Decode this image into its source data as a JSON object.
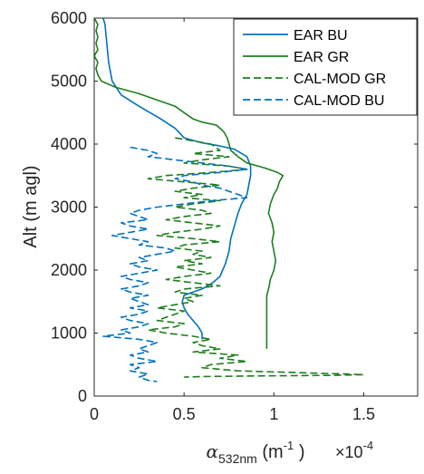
{
  "chart_data": {
    "type": "line",
    "title": "",
    "xlabel": "α",
    "xlabel_sub": "532nm",
    "xlabel_unit": " (m",
    "xlabel_unit_sup": "-1",
    "xlabel_unit_close": " )",
    "ylabel": "Alt (m agl)",
    "x_multiplier_label": "×10",
    "x_multiplier_exp": "-4",
    "xlim": [
      0,
      1.8
    ],
    "ylim": [
      0,
      6000
    ],
    "xticks": [
      0,
      0.5,
      1,
      1.5
    ],
    "xtick_labels": [
      "0",
      "0.5",
      "1",
      "1.5"
    ],
    "yticks": [
      0,
      1000,
      2000,
      3000,
      4000,
      5000,
      6000
    ],
    "ytick_labels": [
      "0",
      "1000",
      "2000",
      "3000",
      "4000",
      "5000",
      "6000"
    ],
    "grid": false,
    "legend_position": "top-right",
    "series": [
      {
        "name": "EAR BU",
        "color": "#0072BD",
        "dash": "solid",
        "points": [
          [
            0.05,
            6000
          ],
          [
            0.06,
            5900
          ],
          [
            0.07,
            5600
          ],
          [
            0.08,
            5300
          ],
          [
            0.1,
            5000
          ],
          [
            0.15,
            4780
          ],
          [
            0.25,
            4600
          ],
          [
            0.37,
            4400
          ],
          [
            0.45,
            4250
          ],
          [
            0.5,
            4100
          ],
          [
            0.6,
            4020
          ],
          [
            0.7,
            3970
          ],
          [
            0.78,
            3920
          ],
          [
            0.85,
            3800
          ],
          [
            0.87,
            3650
          ],
          [
            0.87,
            3500
          ],
          [
            0.86,
            3350
          ],
          [
            0.85,
            3200
          ],
          [
            0.82,
            3050
          ],
          [
            0.8,
            2900
          ],
          [
            0.78,
            2700
          ],
          [
            0.76,
            2500
          ],
          [
            0.75,
            2300
          ],
          [
            0.73,
            2100
          ],
          [
            0.7,
            1900
          ],
          [
            0.66,
            1800
          ],
          [
            0.6,
            1700
          ],
          [
            0.55,
            1650
          ],
          [
            0.5,
            1600
          ],
          [
            0.49,
            1500
          ],
          [
            0.5,
            1400
          ],
          [
            0.52,
            1300
          ],
          [
            0.55,
            1200
          ],
          [
            0.58,
            1100
          ],
          [
            0.6,
            1000
          ],
          [
            0.6,
            900
          ]
        ]
      },
      {
        "name": "EAR GR",
        "color": "#1D7E1D",
        "dash": "solid",
        "points": [
          [
            0.0,
            6000
          ],
          [
            0.02,
            5900
          ],
          [
            0.01,
            5800
          ],
          [
            0.02,
            5700
          ],
          [
            0.01,
            5600
          ],
          [
            0.02,
            5500
          ],
          [
            0.0,
            5400
          ],
          [
            0.02,
            5300
          ],
          [
            0.01,
            5200
          ],
          [
            0.02,
            5100
          ],
          [
            0.04,
            5000
          ],
          [
            0.12,
            4900
          ],
          [
            0.25,
            4800
          ],
          [
            0.35,
            4700
          ],
          [
            0.45,
            4600
          ],
          [
            0.5,
            4500
          ],
          [
            0.55,
            4400
          ],
          [
            0.6,
            4350
          ],
          [
            0.68,
            4300
          ],
          [
            0.72,
            4200
          ],
          [
            0.74,
            4100
          ],
          [
            0.75,
            4000
          ],
          [
            0.76,
            3900
          ],
          [
            0.8,
            3800
          ],
          [
            0.85,
            3700
          ],
          [
            0.95,
            3620
          ],
          [
            1.02,
            3550
          ],
          [
            1.05,
            3500
          ],
          [
            1.03,
            3400
          ],
          [
            1.02,
            3300
          ],
          [
            1.0,
            3200
          ],
          [
            0.98,
            3050
          ],
          [
            0.97,
            2900
          ],
          [
            0.99,
            2750
          ],
          [
            1.0,
            2600
          ],
          [
            0.99,
            2450
          ],
          [
            1.0,
            2300
          ],
          [
            1.01,
            2150
          ],
          [
            1.0,
            2000
          ],
          [
            0.98,
            1850
          ],
          [
            0.97,
            1700
          ],
          [
            0.96,
            1600
          ],
          [
            0.96,
            1500
          ],
          [
            0.96,
            1300
          ],
          [
            0.96,
            1100
          ],
          [
            0.96,
            950
          ],
          [
            0.96,
            750
          ]
        ]
      },
      {
        "name": "CAL-MOD GR",
        "color": "#1D7E1D",
        "dash": "dashed",
        "points": [
          [
            0.45,
            4100
          ],
          [
            0.55,
            4050
          ],
          [
            0.65,
            4000
          ],
          [
            0.7,
            3900
          ],
          [
            0.55,
            3850
          ],
          [
            0.75,
            3800
          ],
          [
            0.6,
            3750
          ],
          [
            0.5,
            3700
          ],
          [
            0.75,
            3650
          ],
          [
            0.85,
            3600
          ],
          [
            0.65,
            3550
          ],
          [
            0.4,
            3500
          ],
          [
            0.3,
            3450
          ],
          [
            0.5,
            3400
          ],
          [
            0.7,
            3350
          ],
          [
            0.55,
            3300
          ],
          [
            0.45,
            3250
          ],
          [
            0.6,
            3200
          ],
          [
            0.5,
            3150
          ],
          [
            0.7,
            3100
          ],
          [
            0.55,
            3050
          ],
          [
            0.45,
            3000
          ],
          [
            0.6,
            2950
          ],
          [
            0.65,
            2900
          ],
          [
            0.5,
            2850
          ],
          [
            0.4,
            2800
          ],
          [
            0.55,
            2750
          ],
          [
            0.7,
            2700
          ],
          [
            0.6,
            2650
          ],
          [
            0.45,
            2600
          ],
          [
            0.35,
            2550
          ],
          [
            0.55,
            2500
          ],
          [
            0.7,
            2450
          ],
          [
            0.5,
            2400
          ],
          [
            0.45,
            2350
          ],
          [
            0.6,
            2300
          ],
          [
            0.55,
            2250
          ],
          [
            0.65,
            2200
          ],
          [
            0.5,
            2150
          ],
          [
            0.6,
            2100
          ],
          [
            0.45,
            2050
          ],
          [
            0.55,
            2000
          ],
          [
            0.65,
            1950
          ],
          [
            0.5,
            1900
          ],
          [
            0.4,
            1850
          ],
          [
            0.55,
            1800
          ],
          [
            0.7,
            1750
          ],
          [
            0.5,
            1700
          ],
          [
            0.45,
            1650
          ],
          [
            0.6,
            1600
          ],
          [
            0.5,
            1550
          ],
          [
            0.55,
            1500
          ],
          [
            0.45,
            1450
          ],
          [
            0.35,
            1400
          ],
          [
            0.5,
            1350
          ],
          [
            0.45,
            1300
          ],
          [
            0.4,
            1250
          ],
          [
            0.35,
            1200
          ],
          [
            0.5,
            1150
          ],
          [
            0.45,
            1100
          ],
          [
            0.3,
            1050
          ],
          [
            0.4,
            1000
          ],
          [
            0.55,
            950
          ],
          [
            0.65,
            900
          ],
          [
            0.55,
            850
          ],
          [
            0.6,
            800
          ],
          [
            0.7,
            750
          ],
          [
            0.55,
            700
          ],
          [
            0.8,
            650
          ],
          [
            0.7,
            600
          ],
          [
            0.85,
            550
          ],
          [
            0.65,
            500
          ],
          [
            0.6,
            450
          ],
          [
            0.8,
            400
          ],
          [
            1.4,
            350
          ],
          [
            1.5,
            340
          ],
          [
            1.35,
            330
          ],
          [
            0.9,
            320
          ],
          [
            0.6,
            310
          ],
          [
            0.5,
            300
          ]
        ]
      },
      {
        "name": "CAL-MOD BU",
        "color": "#0072BD",
        "dash": "dashed",
        "points": [
          [
            0.2,
            3950
          ],
          [
            0.3,
            3900
          ],
          [
            0.35,
            3850
          ],
          [
            0.3,
            3800
          ],
          [
            0.45,
            3750
          ],
          [
            0.6,
            3700
          ],
          [
            0.75,
            3650
          ],
          [
            0.85,
            3600
          ],
          [
            0.7,
            3550
          ],
          [
            0.5,
            3500
          ],
          [
            0.45,
            3450
          ],
          [
            0.55,
            3400
          ],
          [
            0.6,
            3350
          ],
          [
            0.7,
            3300
          ],
          [
            0.75,
            3250
          ],
          [
            0.8,
            3200
          ],
          [
            0.85,
            3150
          ],
          [
            0.65,
            3100
          ],
          [
            0.5,
            3050
          ],
          [
            0.35,
            3000
          ],
          [
            0.25,
            2950
          ],
          [
            0.2,
            2900
          ],
          [
            0.25,
            2850
          ],
          [
            0.3,
            2800
          ],
          [
            0.15,
            2750
          ],
          [
            0.2,
            2700
          ],
          [
            0.3,
            2650
          ],
          [
            0.2,
            2600
          ],
          [
            0.1,
            2550
          ],
          [
            0.2,
            2500
          ],
          [
            0.3,
            2450
          ],
          [
            0.25,
            2400
          ],
          [
            0.4,
            2350
          ],
          [
            0.45,
            2300
          ],
          [
            0.35,
            2250
          ],
          [
            0.25,
            2200
          ],
          [
            0.3,
            2150
          ],
          [
            0.2,
            2100
          ],
          [
            0.25,
            2050
          ],
          [
            0.35,
            2000
          ],
          [
            0.25,
            1950
          ],
          [
            0.15,
            1900
          ],
          [
            0.2,
            1850
          ],
          [
            0.3,
            1800
          ],
          [
            0.25,
            1750
          ],
          [
            0.15,
            1700
          ],
          [
            0.2,
            1650
          ],
          [
            0.3,
            1600
          ],
          [
            0.2,
            1550
          ],
          [
            0.25,
            1500
          ],
          [
            0.3,
            1450
          ],
          [
            0.2,
            1400
          ],
          [
            0.3,
            1350
          ],
          [
            0.25,
            1300
          ],
          [
            0.15,
            1250
          ],
          [
            0.2,
            1200
          ],
          [
            0.3,
            1150
          ],
          [
            0.25,
            1100
          ],
          [
            0.15,
            1050
          ],
          [
            0.2,
            1000
          ],
          [
            0.05,
            950
          ],
          [
            0.25,
            900
          ],
          [
            0.35,
            850
          ],
          [
            0.3,
            800
          ],
          [
            0.25,
            750
          ],
          [
            0.3,
            700
          ],
          [
            0.2,
            650
          ],
          [
            0.25,
            600
          ],
          [
            0.35,
            550
          ],
          [
            0.2,
            500
          ],
          [
            0.25,
            450
          ],
          [
            0.2,
            400
          ],
          [
            0.3,
            350
          ],
          [
            0.25,
            300
          ],
          [
            0.3,
            250
          ],
          [
            0.35,
            230
          ]
        ]
      }
    ]
  }
}
